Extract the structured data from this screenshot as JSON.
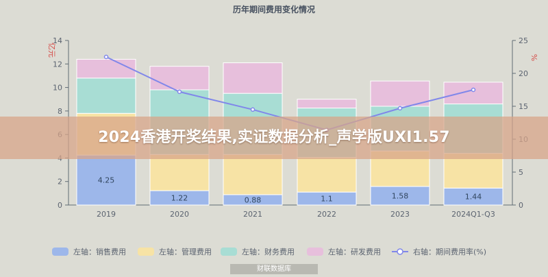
{
  "chart_data": {
    "type": "bar",
    "title": "历年期间费用变化情况",
    "categories": [
      "2019",
      "2020",
      "2021",
      "2022",
      "2023",
      "2024Q1-Q3"
    ],
    "left_axis": {
      "label": "亿元",
      "range": [
        0,
        14
      ],
      "ticks": [
        0,
        2,
        4,
        6,
        8,
        10,
        12,
        14
      ]
    },
    "right_axis": {
      "label": "%",
      "range": [
        0,
        25
      ],
      "ticks": [
        0,
        5,
        10,
        15,
        20,
        25
      ]
    },
    "series": [
      {
        "name": "左轴：销售费用",
        "values": [
          4.25,
          1.22,
          0.88,
          1.1,
          1.58,
          1.44
        ],
        "labels": [
          "4.25",
          "1.22",
          "0.88",
          "1.1",
          "1.58",
          "1.44"
        ]
      },
      {
        "name": "左轴：管理费用",
        "values": [
          3.55,
          3.08,
          3.42,
          2.95,
          3.02,
          2.96
        ]
      },
      {
        "name": "左轴：财务费用",
        "values": [
          3.0,
          5.5,
          5.2,
          4.2,
          3.8,
          4.2
        ]
      },
      {
        "name": "左轴：研发费用",
        "values": [
          1.6,
          2.0,
          2.6,
          0.75,
          2.15,
          1.85
        ]
      },
      {
        "name": "右轴：期间费用率(%)",
        "values": [
          22.5,
          17.2,
          14.5,
          11.4,
          14.7,
          17.5
        ]
      }
    ],
    "legend_position": "bottom",
    "grid": false
  },
  "colors": {
    "sales": "#9db7ea",
    "admin": "#f7e3a5",
    "finance": "#a8ddd4",
    "rd": "#e7bfdc",
    "line": "#8087ea",
    "axis": "#5f6b74",
    "title": "#475160",
    "tick": "#5b6370"
  },
  "overlay": {
    "title": "2024香港开奖结果,实证数据分析_声学版UXI1.57"
  },
  "watermark": {
    "text": "财联数据库"
  }
}
